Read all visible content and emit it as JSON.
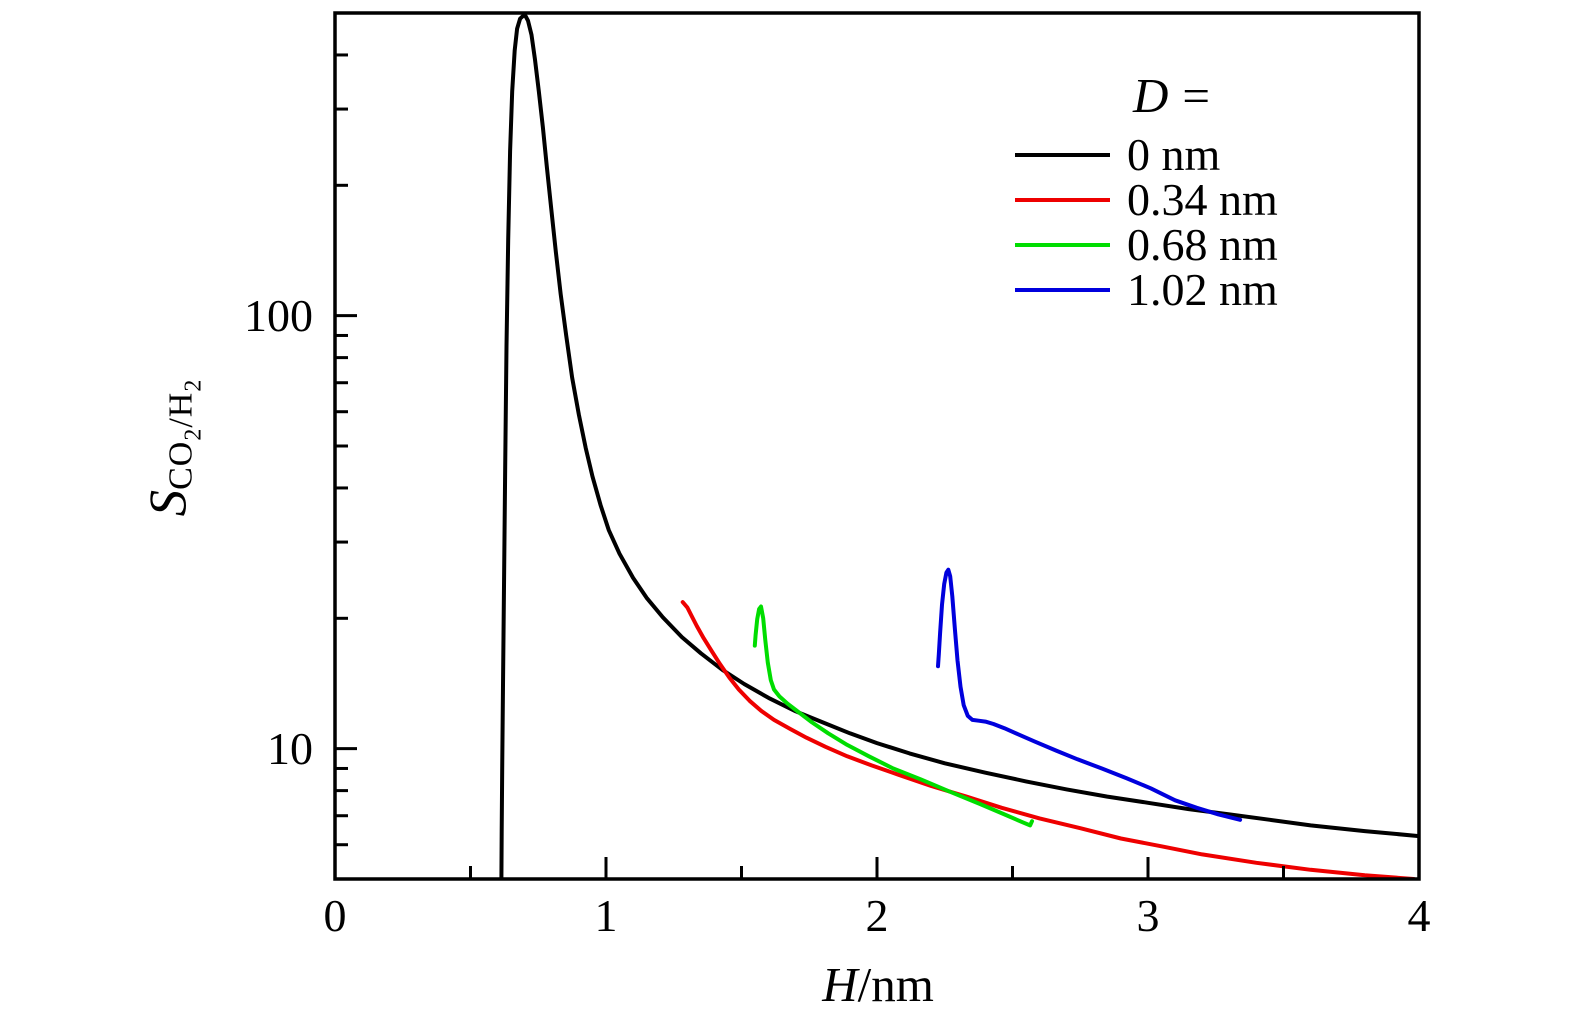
{
  "figure": {
    "background": "#ffffff"
  },
  "chart_data": {
    "type": "line",
    "title": "",
    "xlabel": "H/nm",
    "xlabel_parts": [
      "H",
      "/nm"
    ],
    "ylabel": "S_CO2/H2",
    "ylabel_parts": {
      "main": "S",
      "sub": [
        [
          "CO",
          "2"
        ],
        [
          "/H",
          "2"
        ]
      ]
    },
    "grid": false,
    "x_axis": {
      "min": 0,
      "max": 4,
      "scale": "linear",
      "major_ticks": [
        0,
        1,
        2,
        3,
        4
      ],
      "tick_labels": [
        "0",
        "1",
        "2",
        "3",
        "4"
      ],
      "minor_ticks": [
        0.5,
        1.5,
        2.5,
        3.5
      ]
    },
    "y_axis": {
      "min": 5,
      "max": 500,
      "scale": "log",
      "major_ticks": [
        10,
        100
      ],
      "tick_labels": [
        "10",
        "100"
      ],
      "minor_ticks": [
        6,
        7,
        8,
        9,
        20,
        30,
        40,
        50,
        60,
        70,
        80,
        90,
        200,
        300,
        400
      ]
    },
    "legend": {
      "title_var": "D",
      "title_eq": "=",
      "position": "upper right"
    },
    "series": [
      {
        "name": "D = 0 nm",
        "label": "0 nm",
        "color": "#000000",
        "points": [
          [
            0.614,
            5.0
          ],
          [
            0.615,
            6.5
          ],
          [
            0.617,
            9
          ],
          [
            0.62,
            14
          ],
          [
            0.624,
            25
          ],
          [
            0.628,
            45
          ],
          [
            0.633,
            85
          ],
          [
            0.639,
            150
          ],
          [
            0.646,
            240
          ],
          [
            0.654,
            330
          ],
          [
            0.663,
            410
          ],
          [
            0.672,
            460
          ],
          [
            0.683,
            485
          ],
          [
            0.695,
            493
          ],
          [
            0.703,
            492
          ],
          [
            0.712,
            480
          ],
          [
            0.725,
            445
          ],
          [
            0.738,
            390
          ],
          [
            0.752,
            330
          ],
          [
            0.767,
            272
          ],
          [
            0.782,
            220
          ],
          [
            0.798,
            176
          ],
          [
            0.815,
            140
          ],
          [
            0.833,
            112
          ],
          [
            0.853,
            90
          ],
          [
            0.875,
            72
          ],
          [
            0.9,
            59
          ],
          [
            0.925,
            49.5
          ],
          [
            0.95,
            42.5
          ],
          [
            0.98,
            36.5
          ],
          [
            1.01,
            32
          ],
          [
            1.05,
            28.2
          ],
          [
            1.1,
            24.8
          ],
          [
            1.15,
            22.3
          ],
          [
            1.21,
            20.1
          ],
          [
            1.28,
            18.1
          ],
          [
            1.35,
            16.6
          ],
          [
            1.43,
            15.2
          ],
          [
            1.51,
            14.1
          ],
          [
            1.6,
            13.1
          ],
          [
            1.7,
            12.2
          ],
          [
            1.8,
            11.5
          ],
          [
            1.9,
            10.85
          ],
          [
            2.0,
            10.3
          ],
          [
            2.12,
            9.75
          ],
          [
            2.25,
            9.25
          ],
          [
            2.4,
            8.8
          ],
          [
            2.55,
            8.4
          ],
          [
            2.7,
            8.05
          ],
          [
            2.85,
            7.75
          ],
          [
            3.0,
            7.5
          ],
          [
            3.15,
            7.25
          ],
          [
            3.3,
            7.05
          ],
          [
            3.45,
            6.85
          ],
          [
            3.6,
            6.65
          ],
          [
            3.8,
            6.45
          ],
          [
            4.0,
            6.28
          ]
        ]
      },
      {
        "name": "D = 0.34 nm",
        "label": "0.34 nm",
        "color": "#ee0000",
        "points": [
          [
            1.283,
            21.8
          ],
          [
            1.3,
            21.2
          ],
          [
            1.315,
            20.3
          ],
          [
            1.335,
            19.2
          ],
          [
            1.36,
            18.0
          ],
          [
            1.39,
            16.8
          ],
          [
            1.42,
            15.7
          ],
          [
            1.455,
            14.6
          ],
          [
            1.49,
            13.7
          ],
          [
            1.53,
            12.9
          ],
          [
            1.575,
            12.2
          ],
          [
            1.62,
            11.65
          ],
          [
            1.68,
            11.1
          ],
          [
            1.74,
            10.6
          ],
          [
            1.81,
            10.1
          ],
          [
            1.89,
            9.6
          ],
          [
            1.98,
            9.15
          ],
          [
            2.08,
            8.7
          ],
          [
            2.2,
            8.2
          ],
          [
            2.33,
            7.75
          ],
          [
            2.46,
            7.3
          ],
          [
            2.6,
            6.9
          ],
          [
            2.75,
            6.55
          ],
          [
            2.9,
            6.2
          ],
          [
            3.05,
            5.95
          ],
          [
            3.2,
            5.7
          ],
          [
            3.4,
            5.45
          ],
          [
            3.6,
            5.25
          ],
          [
            3.8,
            5.1
          ],
          [
            3.98,
            5.0
          ]
        ]
      },
      {
        "name": "D = 0.68 nm",
        "label": "0.68 nm",
        "color": "#00dd00",
        "points": [
          [
            1.549,
            17.3
          ],
          [
            1.552,
            18.3
          ],
          [
            1.558,
            19.9
          ],
          [
            1.565,
            21.0
          ],
          [
            1.572,
            21.3
          ],
          [
            1.58,
            20.0
          ],
          [
            1.588,
            17.8
          ],
          [
            1.597,
            15.8
          ],
          [
            1.608,
            14.4
          ],
          [
            1.62,
            13.7
          ],
          [
            1.64,
            13.2
          ],
          [
            1.67,
            12.7
          ],
          [
            1.71,
            12.15
          ],
          [
            1.76,
            11.5
          ],
          [
            1.82,
            10.85
          ],
          [
            1.89,
            10.2
          ],
          [
            1.97,
            9.6
          ],
          [
            2.06,
            9.0
          ],
          [
            2.16,
            8.5
          ],
          [
            2.27,
            7.95
          ],
          [
            2.38,
            7.45
          ],
          [
            2.47,
            7.05
          ],
          [
            2.54,
            6.75
          ],
          [
            2.565,
            6.65
          ],
          [
            2.572,
            6.8
          ]
        ]
      },
      {
        "name": "D = 1.02 nm",
        "label": "1.02 nm",
        "color": "#0000dd",
        "points": [
          [
            2.225,
            15.5
          ],
          [
            2.228,
            16.5
          ],
          [
            2.233,
            18.5
          ],
          [
            2.24,
            21.5
          ],
          [
            2.248,
            24.0
          ],
          [
            2.256,
            25.5
          ],
          [
            2.263,
            25.9
          ],
          [
            2.27,
            25.0
          ],
          [
            2.278,
            22.5
          ],
          [
            2.287,
            19.0
          ],
          [
            2.297,
            16.0
          ],
          [
            2.308,
            13.9
          ],
          [
            2.32,
            12.6
          ],
          [
            2.335,
            11.9
          ],
          [
            2.352,
            11.65
          ],
          [
            2.375,
            11.6
          ],
          [
            2.4,
            11.55
          ],
          [
            2.43,
            11.4
          ],
          [
            2.47,
            11.15
          ],
          [
            2.52,
            10.8
          ],
          [
            2.58,
            10.4
          ],
          [
            2.66,
            9.9
          ],
          [
            2.74,
            9.45
          ],
          [
            2.83,
            9.0
          ],
          [
            2.92,
            8.55
          ],
          [
            3.01,
            8.1
          ],
          [
            3.1,
            7.6
          ],
          [
            3.18,
            7.3
          ],
          [
            3.26,
            7.05
          ],
          [
            3.34,
            6.85
          ]
        ]
      }
    ]
  }
}
